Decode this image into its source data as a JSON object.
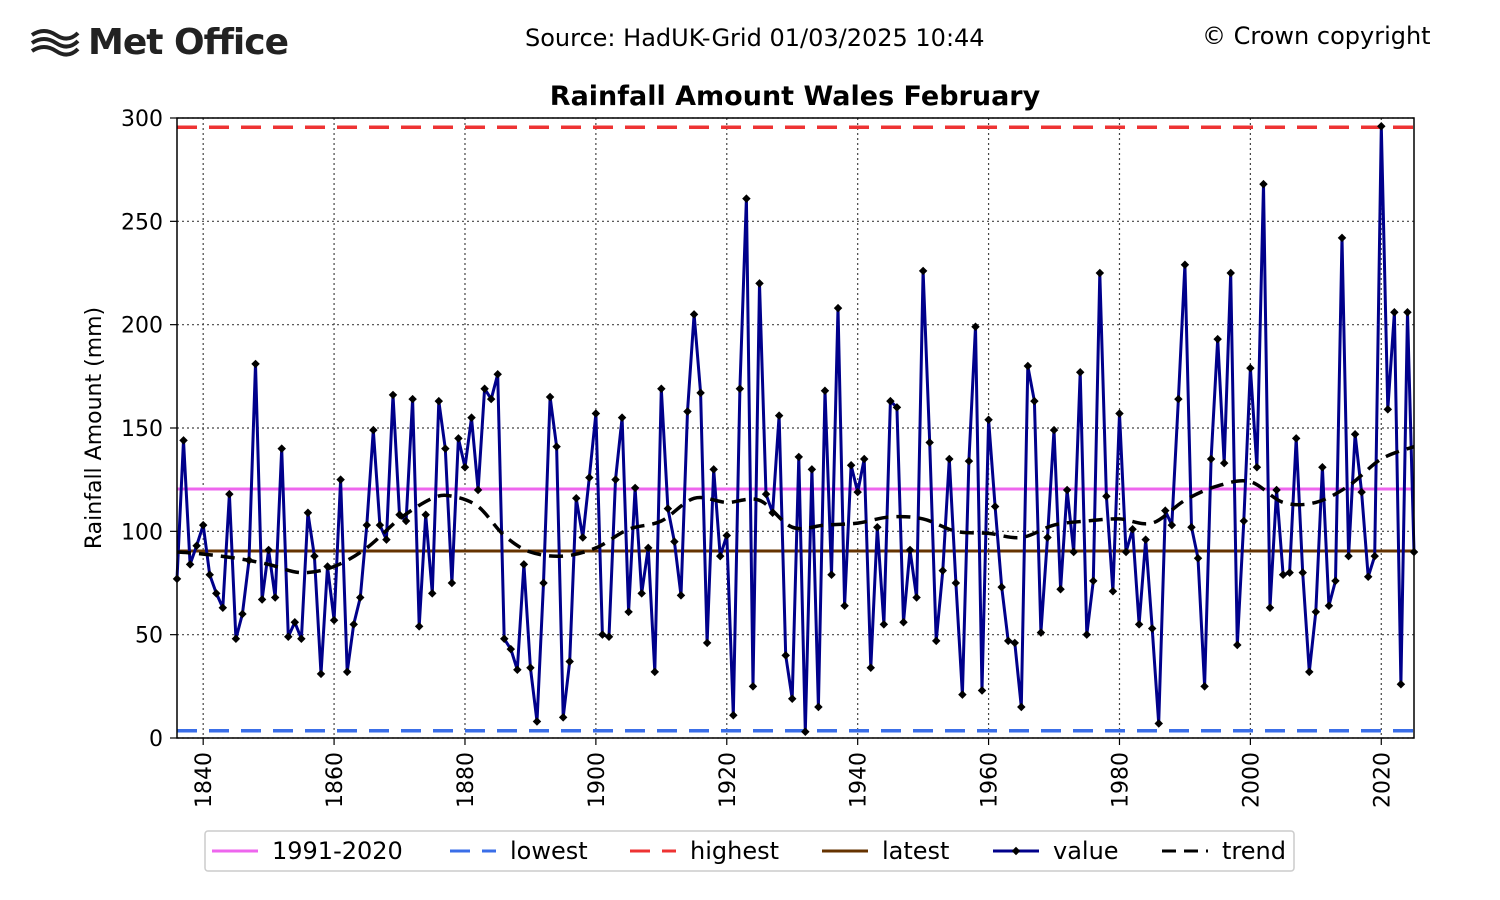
{
  "header": {
    "logo_text": "Met Office",
    "source": "Source: HadUK-Grid 01/03/2025 10:44",
    "copyright": "© Crown copyright"
  },
  "chart_data": {
    "type": "line",
    "title": "Rainfall Amount Wales February",
    "xlabel": "",
    "ylabel": "Rainfall Amount (mm)",
    "xlim": [
      1836,
      2025
    ],
    "ylim": [
      0,
      300
    ],
    "x_ticks": [
      "1840",
      "1860",
      "1880",
      "1900",
      "1920",
      "1940",
      "1960",
      "1980",
      "2000",
      "2020"
    ],
    "y_ticks": [
      "0",
      "50",
      "100",
      "150",
      "200",
      "250",
      "300"
    ],
    "grid": true,
    "legend_position": "bottom",
    "reference_lines": {
      "average_1991_2020": 120.5,
      "lowest": 3.5,
      "highest": 295.5,
      "latest": 90.5
    },
    "colors": {
      "average": "#ee66ee",
      "lowest": "#3a6ee8",
      "highest": "#ee3333",
      "latest": "#663300",
      "value": "#00008b",
      "trend": "#000000"
    },
    "legend": [
      "1991-2020",
      "lowest",
      "highest",
      "latest",
      "value",
      "trend"
    ],
    "series": [
      {
        "name": "value",
        "x_start": 1836,
        "values": [
          77,
          144,
          84,
          93,
          103,
          79,
          70,
          63,
          118,
          48,
          60,
          86,
          181,
          67,
          91,
          68,
          140,
          49,
          56,
          48,
          109,
          88,
          31,
          83,
          57,
          125,
          32,
          55,
          68,
          103,
          149,
          103,
          96,
          166,
          108,
          105,
          164,
          54,
          108,
          70,
          163,
          140,
          75,
          145,
          131,
          155,
          120,
          169,
          164,
          176,
          48,
          43,
          33,
          84,
          34,
          8,
          75,
          165,
          141,
          10,
          37,
          116,
          97,
          126,
          157,
          50,
          49,
          125,
          155,
          61,
          121,
          70,
          92,
          32,
          169,
          111,
          95,
          69,
          158,
          205,
          167,
          46,
          130,
          88,
          98,
          11,
          169,
          261,
          25,
          220,
          118,
          109,
          156,
          40,
          19,
          136,
          3,
          130,
          15,
          168,
          79,
          208,
          64,
          132,
          119,
          135,
          34,
          102,
          55,
          163,
          160,
          56,
          91,
          68,
          226,
          143,
          47,
          81,
          135,
          75,
          21,
          134,
          199,
          23,
          154,
          112,
          73,
          47,
          46,
          15,
          180,
          163,
          51,
          97,
          149,
          72,
          120,
          90,
          177,
          50,
          76,
          225,
          117,
          71,
          157,
          90,
          101,
          55,
          96,
          53,
          7,
          110,
          103,
          164,
          229,
          102,
          87,
          25,
          135,
          193,
          133,
          225,
          45,
          105,
          179,
          131,
          268,
          63,
          120,
          79,
          80,
          145,
          80,
          32,
          61,
          131,
          64,
          76,
          242,
          88,
          147,
          119,
          78,
          88,
          296,
          159,
          206,
          26,
          206,
          90
        ]
      },
      {
        "name": "trend",
        "x": [
          1836,
          1840,
          1845,
          1850,
          1855,
          1860,
          1865,
          1870,
          1875,
          1878,
          1882,
          1886,
          1890,
          1895,
          1900,
          1905,
          1910,
          1915,
          1920,
          1925,
          1930,
          1935,
          1940,
          1945,
          1950,
          1955,
          1960,
          1965,
          1970,
          1975,
          1980,
          1985,
          1990,
          1995,
          2000,
          2005,
          2010,
          2015,
          2020,
          2025
        ],
        "values": [
          90,
          89,
          87,
          84,
          80,
          83,
          92,
          106,
          116,
          117,
          112,
          98,
          90,
          88,
          92,
          101,
          105,
          116,
          114,
          115,
          102,
          103,
          104,
          107,
          106,
          100,
          99,
          97,
          103,
          105,
          106,
          104,
          115,
          122,
          124,
          114,
          114,
          122,
          135,
          141
        ]
      }
    ]
  }
}
